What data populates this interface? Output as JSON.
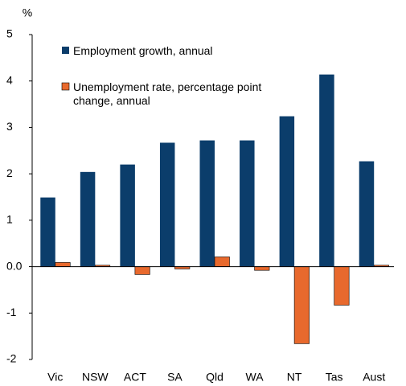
{
  "chart_data": {
    "type": "bar",
    "y_axis_label": "%",
    "categories": [
      "Vic",
      "NSW",
      "ACT",
      "SA",
      "Qld",
      "WA",
      "NT",
      "Tas",
      "Aust"
    ],
    "series": [
      {
        "name": "Employment growth, annual",
        "color": "#0b3d6b",
        "values": [
          1.49,
          2.04,
          2.2,
          2.67,
          2.72,
          2.72,
          3.24,
          4.14,
          2.27
        ]
      },
      {
        "name": "Unemployment rate, percentage point change, annual",
        "color": "#e8692d",
        "values": [
          0.09,
          0.03,
          -0.17,
          -0.05,
          0.21,
          -0.08,
          -1.66,
          -0.83,
          0.03
        ]
      }
    ],
    "ylim": [
      -2,
      5
    ],
    "yticks": [
      -2,
      -1,
      {
        "value": 0,
        "label": "0.0"
      },
      1,
      2,
      3,
      4,
      5
    ],
    "legend": "top-left"
  }
}
